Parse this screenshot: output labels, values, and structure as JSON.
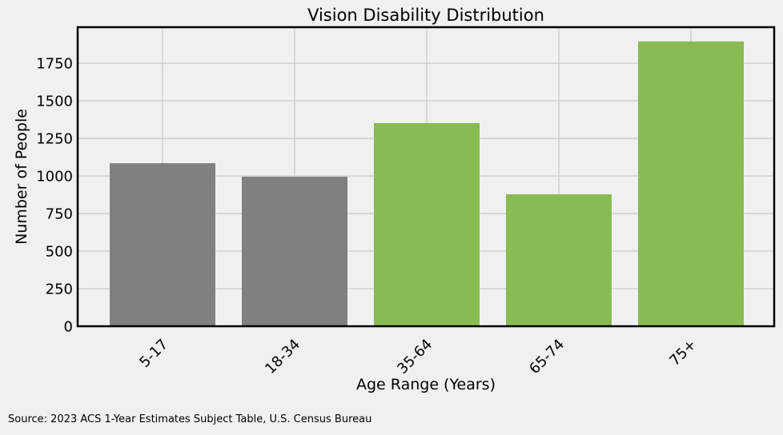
{
  "chart_data": {
    "type": "bar",
    "title": "Vision Disability Distribution",
    "xlabel": "Age Range (Years)",
    "ylabel": "Number of People",
    "categories": [
      "5-17",
      "18-34",
      "35-64",
      "65-74",
      "75+"
    ],
    "values": [
      1085,
      995,
      1352,
      878,
      1895
    ],
    "bar_colors": [
      "#808080",
      "#808080",
      "#88bb52",
      "#88bb52",
      "#88bb52"
    ],
    "ylim": [
      0,
      1990
    ],
    "yticks": [
      0,
      250,
      500,
      750,
      1000,
      1250,
      1500,
      1750
    ],
    "ytick_labels": [
      "0",
      "250",
      "500",
      "750",
      "1000",
      "1250",
      "1500",
      "1750"
    ],
    "grid": true,
    "background_color": "#f0f0f0",
    "grid_color": "#cbcbcb"
  },
  "source": "Source: 2023 ACS 1-Year Estimates Subject Table, U.S. Census Bureau"
}
